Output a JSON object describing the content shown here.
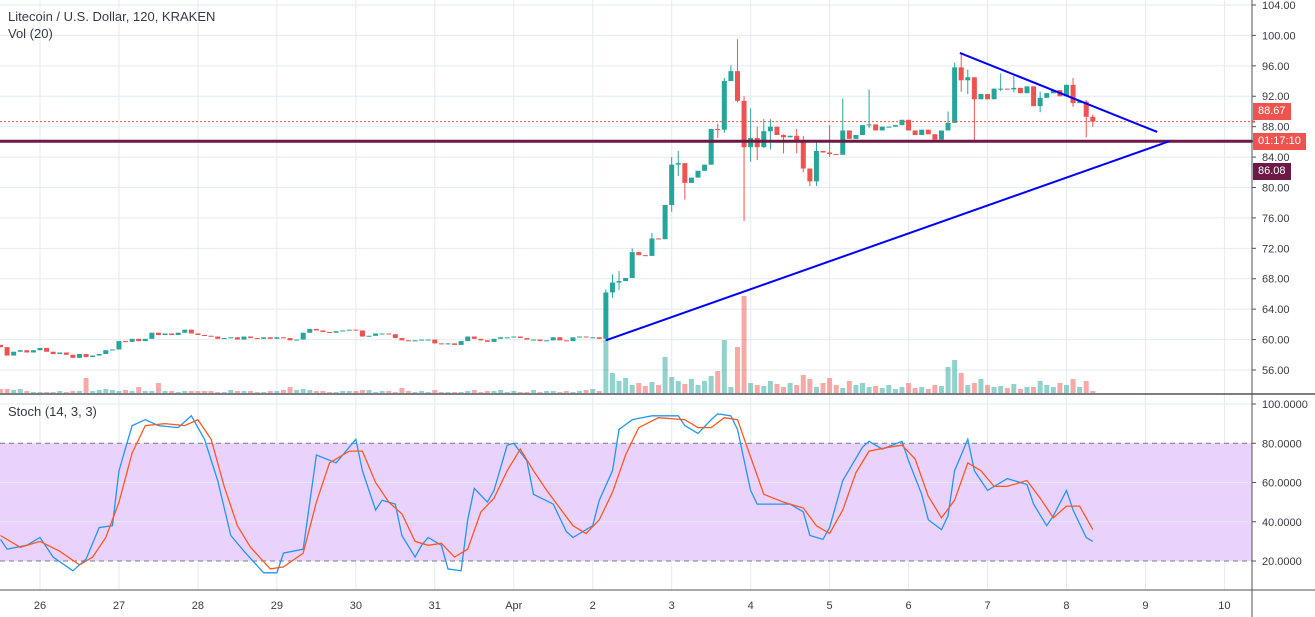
{
  "header": {
    "symbol_title": "Litecoin / U.S. Dollar, 120, KRAKEN",
    "volume_legend": "Vol (20)",
    "stoch_legend": "Stoch (14, 3, 3)"
  },
  "price_labels": {
    "last_price": "88.67",
    "countdown": "01:17:10",
    "horizontal_line_price": "86.08"
  },
  "colors": {
    "up": "#26a69a",
    "down": "#ef5350",
    "horizontal_line": "#6d1845",
    "trendline": "#0000ff",
    "stoch_k": "#2196f3",
    "stoch_d": "#ff5722",
    "stoch_band": "#e9d3fc"
  },
  "chart_data": [
    {
      "type": "candlestick",
      "interval_minutes": 120,
      "x_tick_labels": [
        "26",
        "27",
        "28",
        "29",
        "30",
        "31",
        "Apr",
        "2",
        "3",
        "4",
        "5",
        "6",
        "7",
        "8",
        "9",
        "10"
      ],
      "y_ticks": [
        56,
        60,
        64,
        68,
        72,
        76,
        80,
        84,
        88,
        92,
        96,
        100,
        104
      ],
      "y_tick_labels": [
        "56.00",
        "60.00",
        "64.00",
        "68.00",
        "72.00",
        "76.00",
        "80.00",
        "84.00",
        "88.00",
        "92.00",
        "96.00",
        "100.00",
        "104.00"
      ],
      "ylim": [
        54,
        104.6
      ],
      "grid": true,
      "first_open": 59.3,
      "close": [
        59.0,
        57.9,
        58.4,
        58.6,
        58.3,
        58.6,
        58.9,
        58.4,
        58.1,
        58.3,
        58.0,
        57.6,
        58.1,
        57.7,
        57.9,
        58.1,
        58.6,
        58.7,
        59.8,
        59.7,
        60.1,
        59.8,
        60.1,
        60.9,
        60.6,
        60.8,
        60.6,
        60.9,
        61.3,
        60.8,
        60.6,
        60.5,
        60.4,
        60.1,
        60.2,
        60.3,
        60.0,
        60.4,
        60.2,
        60.1,
        60.3,
        60.1,
        60.3,
        60.2,
        59.9,
        60.0,
        60.9,
        61.4,
        61.2,
        61.0,
        60.9,
        61.1,
        61.2,
        61.3,
        61.2,
        60.4,
        60.5,
        60.8,
        60.8,
        60.7,
        60.2,
        59.9,
        59.8,
        59.9,
        60.0,
        60.0,
        59.5,
        59.4,
        59.5,
        59.3,
        59.8,
        60.4,
        60.1,
        59.9,
        59.7,
        60.1,
        60.3,
        60.3,
        60.4,
        60.2,
        60.0,
        60.0,
        59.8,
        59.9,
        60.3,
        59.9,
        59.8,
        60.3,
        60.4,
        60.3,
        60.3,
        60.1,
        66.2,
        67.5,
        67.7,
        68.1,
        71.5,
        71.1,
        71.0,
        73.3,
        73.2,
        77.7,
        83.0,
        83.2,
        80.6,
        81.3,
        82.2,
        83.0,
        87.7,
        87.6,
        94.0,
        95.3,
        91.4,
        85.3,
        86.5,
        85.3,
        87.4,
        88.0,
        86.9,
        86.6,
        86.8,
        86.2,
        82.5,
        80.8,
        84.8,
        84.6,
        84.4,
        84.3,
        87.5,
        86.4,
        86.9,
        88.2,
        88.3,
        87.5,
        88.0,
        88.0,
        88.2,
        88.9,
        87.5,
        86.9,
        87.6,
        87.0,
        86.3,
        87.5,
        88.5,
        95.8,
        94.1,
        94.5,
        91.6,
        92.3,
        91.6,
        93.0,
        93.0,
        92.9,
        93.1,
        92.4,
        93.3,
        90.7,
        91.8,
        92.4,
        92.8,
        92.0,
        93.5,
        91.1,
        91.3,
        89.3,
        88.67
      ],
      "wicks": {
        "86": [
          66.6,
          59.8
        ],
        "87": [
          68.6,
          65.5
        ],
        "88": [
          69.0,
          66.5
        ],
        "90": [
          72.0,
          70.2
        ],
        "93": [
          74.0,
          72.5
        ],
        "96": [
          84.0,
          76.8
        ],
        "97": [
          84.8,
          81.5
        ],
        "98": [
          83.0,
          78.4
        ],
        "103": [
          88.4,
          86.5
        ],
        "104": [
          94.4,
          87.2
        ],
        "105": [
          96.1,
          94.0
        ],
        "106": [
          99.5,
          91.2
        ],
        "107": [
          92.0,
          75.6
        ],
        "108": [
          90.4,
          83.4
        ],
        "109": [
          88.0,
          83.6
        ],
        "110": [
          89.0,
          85.2
        ],
        "111": [
          89.0,
          85.0
        ],
        "113": [
          87.0,
          84.5
        ],
        "115": [
          87.7,
          84.5
        ],
        "116": [
          86.8,
          82.0
        ],
        "117": [
          81.3,
          80.2
        ],
        "118": [
          86.0,
          80.2
        ],
        "120": [
          88.2,
          84.0
        ],
        "122": [
          91.7,
          84.3
        ],
        "126": [
          92.9,
          87.8
        ],
        "138": [
          90.0,
          87.8
        ],
        "139": [
          96.4,
          88.5
        ],
        "140": [
          97.5,
          92.6
        ],
        "141": [
          95.5,
          92.3
        ],
        "142": [
          92.0,
          86.2
        ],
        "146": [
          95.0,
          92.7
        ],
        "148": [
          94.7,
          92.5
        ],
        "152": [
          92.6,
          89.9
        ],
        "157": [
          94.4,
          90.6
        ],
        "159": [
          91.5,
          86.6
        ],
        "160": [
          89.6,
          88.0
        ]
      },
      "volume": [
        4,
        4,
        3,
        4,
        2,
        1,
        1,
        1,
        1,
        2,
        1,
        2,
        2,
        15,
        2,
        3,
        4,
        3,
        2,
        3,
        2,
        6,
        2,
        2,
        10,
        2,
        2,
        1,
        2,
        2,
        2,
        2,
        2,
        1,
        1,
        3,
        2,
        2,
        2,
        1,
        1,
        2,
        2,
        3,
        6,
        3,
        4,
        3,
        2,
        2,
        1,
        1,
        2,
        2,
        2,
        3,
        3,
        1,
        2,
        2,
        1,
        5,
        2,
        1,
        2,
        1,
        3,
        1,
        1,
        1,
        1,
        2,
        3,
        1,
        2,
        2,
        3,
        1,
        2,
        1,
        1,
        3,
        1,
        2,
        2,
        1,
        2,
        1,
        2,
        3,
        4,
        2,
        53,
        20,
        12,
        15,
        8,
        10,
        7,
        11,
        8,
        36,
        16,
        12,
        9,
        14,
        8,
        12,
        17,
        22,
        53,
        6,
        46,
        97,
        10,
        8,
        7,
        12,
        9,
        6,
        10,
        8,
        18,
        14,
        6,
        10,
        15,
        8,
        5,
        12,
        8,
        10,
        6,
        7,
        5,
        8,
        4,
        6,
        10,
        5,
        6,
        4,
        8,
        7,
        26,
        33,
        20,
        8,
        10,
        14,
        8,
        6,
        7,
        5,
        9,
        4,
        6,
        6,
        12,
        8,
        6,
        10,
        8,
        14,
        6,
        12,
        2
      ],
      "horizontal_line": 86.08,
      "last_price": 88.67,
      "trendlines": [
        {
          "from": [
            139.8,
            97.7
          ],
          "to": [
            169.8,
            87.3
          ]
        },
        {
          "from": [
            86,
            59.9
          ],
          "to": [
            171.7,
            86.1
          ]
        }
      ]
    },
    {
      "type": "line",
      "title": "Stoch (14, 3, 3)",
      "ylim": [
        0,
        100
      ],
      "y_ticks": [
        20,
        40,
        60,
        80,
        100
      ],
      "y_tick_labels": [
        "20.0000",
        "40.0000",
        "60.0000",
        "80.0000",
        "100.0000"
      ],
      "band": [
        20,
        80
      ],
      "series": [
        {
          "key": "k",
          "points": [
            [
              -6,
              31
            ],
            [
              -5,
              26
            ],
            [
              -2,
              28
            ],
            [
              0,
              32
            ],
            [
              2,
              22
            ],
            [
              5,
              15
            ],
            [
              7,
              21
            ],
            [
              9,
              37
            ],
            [
              11,
              38
            ],
            [
              12,
              66
            ],
            [
              14,
              89
            ],
            [
              16,
              92
            ],
            [
              18,
              89
            ],
            [
              21,
              88
            ],
            [
              23,
              94
            ],
            [
              25,
              82
            ],
            [
              27,
              61
            ],
            [
              29,
              33
            ],
            [
              31,
              25
            ],
            [
              34,
              14
            ],
            [
              36,
              14
            ],
            [
              37,
              24
            ],
            [
              40,
              26
            ],
            [
              42,
              74
            ],
            [
              45,
              70
            ],
            [
              48,
              82
            ],
            [
              49,
              66
            ],
            [
              51,
              46
            ],
            [
              52,
              51
            ],
            [
              54,
              49
            ],
            [
              55,
              33
            ],
            [
              57,
              22
            ],
            [
              58,
              28
            ],
            [
              59,
              32
            ],
            [
              61,
              28
            ],
            [
              62,
              16
            ],
            [
              64,
              15
            ],
            [
              65,
              41
            ],
            [
              66,
              57
            ],
            [
              68,
              50
            ],
            [
              69,
              56
            ],
            [
              71,
              79
            ],
            [
              72,
              80
            ],
            [
              74,
              71
            ],
            [
              75,
              54
            ],
            [
              78,
              49
            ],
            [
              80,
              35
            ],
            [
              81,
              32
            ],
            [
              84,
              38
            ],
            [
              85,
              51
            ],
            [
              87,
              66
            ],
            [
              88,
              87
            ],
            [
              90,
              92
            ],
            [
              93,
              94
            ],
            [
              97,
              94
            ],
            [
              98,
              89
            ],
            [
              100,
              85
            ],
            [
              102,
              92
            ],
            [
              103,
              95
            ],
            [
              105,
              94
            ],
            [
              106,
              87
            ],
            [
              108,
              56
            ],
            [
              109,
              49
            ],
            [
              114,
              49
            ],
            [
              116,
              45
            ],
            [
              117,
              33
            ],
            [
              119,
              31
            ],
            [
              120,
              37
            ],
            [
              122,
              61
            ],
            [
              125,
              78
            ],
            [
              126,
              81
            ],
            [
              128,
              77
            ],
            [
              131,
              81
            ],
            [
              132,
              71
            ],
            [
              134,
              54
            ],
            [
              135,
              41
            ],
            [
              137,
              36
            ],
            [
              138,
              43
            ],
            [
              139,
              66
            ],
            [
              141,
              82
            ],
            [
              142,
              66
            ],
            [
              144,
              56
            ],
            [
              147,
              62
            ],
            [
              150,
              59
            ],
            [
              151,
              49
            ],
            [
              153,
              38
            ],
            [
              154,
              43
            ],
            [
              156,
              56
            ],
            [
              157,
              46
            ],
            [
              159,
              32
            ],
            [
              160,
              30
            ]
          ]
        },
        {
          "key": "d",
          "points": [
            [
              -6,
              33
            ],
            [
              -3,
              27
            ],
            [
              0,
              30
            ],
            [
              3,
              25
            ],
            [
              6,
              18
            ],
            [
              8,
              22
            ],
            [
              10,
              32
            ],
            [
              12,
              50
            ],
            [
              14,
              75
            ],
            [
              16,
              89
            ],
            [
              19,
              90
            ],
            [
              22,
              89
            ],
            [
              24,
              92
            ],
            [
              26,
              82
            ],
            [
              28,
              58
            ],
            [
              30,
              38
            ],
            [
              32,
              27
            ],
            [
              35,
              16
            ],
            [
              37,
              17
            ],
            [
              40,
              24
            ],
            [
              42,
              50
            ],
            [
              44,
              70
            ],
            [
              47,
              76
            ],
            [
              49,
              76
            ],
            [
              51,
              60
            ],
            [
              53,
              50
            ],
            [
              55,
              44
            ],
            [
              57,
              30
            ],
            [
              59,
              28
            ],
            [
              61,
              29
            ],
            [
              63,
              22
            ],
            [
              65,
              26
            ],
            [
              67,
              45
            ],
            [
              69,
              52
            ],
            [
              71,
              66
            ],
            [
              73,
              77
            ],
            [
              75,
              66
            ],
            [
              77,
              56
            ],
            [
              79,
              47
            ],
            [
              81,
              38
            ],
            [
              83,
              34
            ],
            [
              85,
              41
            ],
            [
              87,
              55
            ],
            [
              89,
              74
            ],
            [
              91,
              88
            ],
            [
              94,
              93
            ],
            [
              98,
              92
            ],
            [
              100,
              88
            ],
            [
              102,
              88
            ],
            [
              104,
              93
            ],
            [
              106,
              92
            ],
            [
              108,
              73
            ],
            [
              110,
              54
            ],
            [
              113,
              50
            ],
            [
              116,
              47
            ],
            [
              118,
              38
            ],
            [
              120,
              34
            ],
            [
              122,
              46
            ],
            [
              124,
              65
            ],
            [
              126,
              76
            ],
            [
              129,
              78
            ],
            [
              131,
              79
            ],
            [
              133,
              72
            ],
            [
              135,
              53
            ],
            [
              137,
              42
            ],
            [
              139,
              51
            ],
            [
              141,
              70
            ],
            [
              143,
              66
            ],
            [
              145,
              58
            ],
            [
              147,
              58
            ],
            [
              150,
              61
            ],
            [
              152,
              52
            ],
            [
              154,
              42
            ],
            [
              156,
              48
            ],
            [
              158,
              48
            ],
            [
              160,
              36
            ]
          ]
        }
      ]
    }
  ]
}
